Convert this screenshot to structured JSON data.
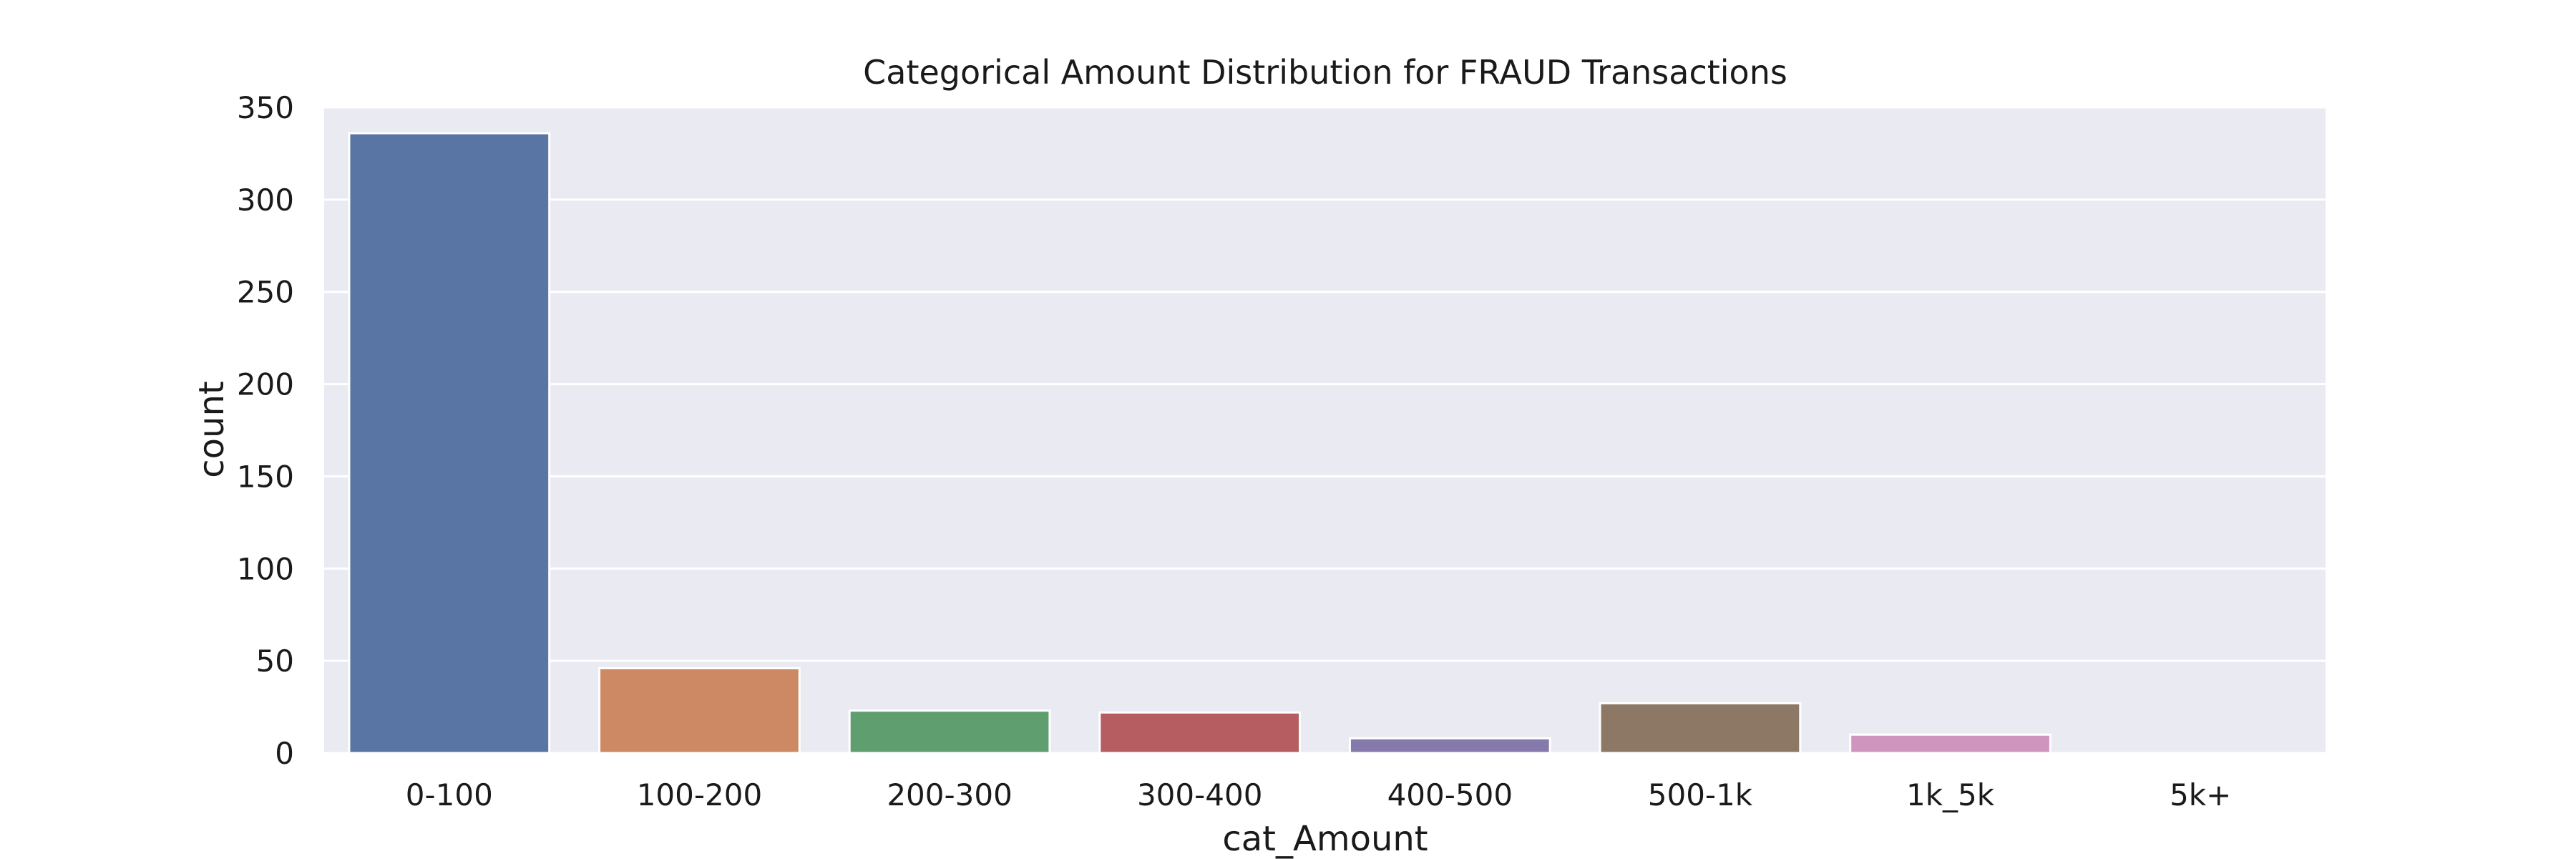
{
  "chart_data": {
    "type": "bar",
    "title": "Categorical Amount Distribution for FRAUD Transactions",
    "xlabel": "cat_Amount",
    "ylabel": "count",
    "categories": [
      "0-100",
      "100-200",
      "200-300",
      "300-400",
      "400-500",
      "500-1k",
      "1k_5k",
      "5k+"
    ],
    "values": [
      336,
      46,
      23,
      22,
      8,
      27,
      10,
      0
    ],
    "colors": [
      "#5875a4",
      "#cc8963",
      "#5f9e6e",
      "#b55d60",
      "#857aab",
      "#8d7866",
      "#d095bf",
      "#8c8c8c"
    ],
    "ylim": [
      0,
      350
    ],
    "yticks": [
      0,
      50,
      100,
      150,
      200,
      250,
      300,
      350
    ],
    "grid": true,
    "background_color": "#eaeaf2",
    "grid_color": "#ffffff"
  }
}
